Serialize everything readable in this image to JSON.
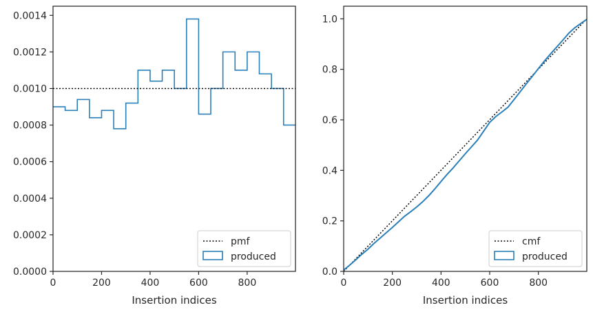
{
  "chart_data": [
    {
      "type": "step",
      "xlabel": "Insertion indices",
      "ylabel": "",
      "xlim": [
        0,
        999
      ],
      "ylim": [
        0,
        0.00145
      ],
      "xticks": [
        0,
        200,
        400,
        600,
        800
      ],
      "xtick_labels": [
        "0",
        "200",
        "400",
        "600",
        "800"
      ],
      "yticks": [
        0,
        0.0002,
        0.0004,
        0.0006,
        0.0008,
        0.001,
        0.0012,
        0.0014
      ],
      "ytick_labels": [
        "0.0000",
        "0.0002",
        "0.0004",
        "0.0006",
        "0.0008",
        "0.0010",
        "0.0012",
        "0.0014"
      ],
      "legend_position": "lower-right",
      "series": [
        {
          "name": "pmf",
          "kind": "reference-line",
          "style": "dotted",
          "color": "#000000",
          "x": [
            0,
            999
          ],
          "y": [
            0.001,
            0.001
          ]
        },
        {
          "name": "produced",
          "kind": "step-histogram",
          "color": "#2a7fb8",
          "bin_edges": [
            0,
            50,
            100,
            150,
            200,
            250,
            300,
            350,
            400,
            450,
            500,
            550,
            600,
            650,
            700,
            750,
            800,
            850,
            900,
            950,
            999
          ],
          "values": [
            0.0009,
            0.00088,
            0.00094,
            0.00084,
            0.00088,
            0.00078,
            0.00092,
            0.0011,
            0.00104,
            0.0011,
            0.001,
            0.00138,
            0.00086,
            0.001,
            0.0012,
            0.0011,
            0.0012,
            0.00108,
            0.001,
            0.0008
          ]
        }
      ]
    },
    {
      "type": "line",
      "xlabel": "Insertion indices",
      "ylabel": "",
      "xlim": [
        0,
        999
      ],
      "ylim": [
        0,
        1.05
      ],
      "xticks": [
        0,
        200,
        400,
        600,
        800
      ],
      "xtick_labels": [
        "0",
        "200",
        "400",
        "600",
        "800"
      ],
      "yticks": [
        0,
        0.2,
        0.4,
        0.6,
        0.8,
        1.0
      ],
      "ytick_labels": [
        "0.0",
        "0.2",
        "0.4",
        "0.6",
        "0.8",
        "1.0"
      ],
      "legend_position": "lower-right",
      "series": [
        {
          "name": "cmf",
          "kind": "reference-line",
          "style": "dotted",
          "color": "#000000",
          "x": [
            0,
            999
          ],
          "y": [
            0.0,
            1.0
          ]
        },
        {
          "name": "produced",
          "kind": "line",
          "color": "#2a7fb8",
          "x": [
            0,
            25,
            50,
            75,
            100,
            125,
            150,
            175,
            200,
            225,
            250,
            275,
            300,
            325,
            350,
            375,
            400,
            425,
            450,
            475,
            500,
            525,
            550,
            575,
            600,
            625,
            650,
            675,
            700,
            725,
            750,
            775,
            800,
            825,
            850,
            875,
            900,
            925,
            950,
            975,
            999
          ],
          "y": [
            0.005,
            0.025,
            0.046,
            0.068,
            0.088,
            0.111,
            0.132,
            0.153,
            0.174,
            0.196,
            0.218,
            0.236,
            0.255,
            0.276,
            0.3,
            0.327,
            0.356,
            0.384,
            0.41,
            0.438,
            0.466,
            0.493,
            0.52,
            0.555,
            0.59,
            0.613,
            0.631,
            0.65,
            0.68,
            0.711,
            0.742,
            0.772,
            0.803,
            0.833,
            0.861,
            0.888,
            0.915,
            0.943,
            0.965,
            0.982,
            0.998
          ]
        }
      ]
    }
  ]
}
